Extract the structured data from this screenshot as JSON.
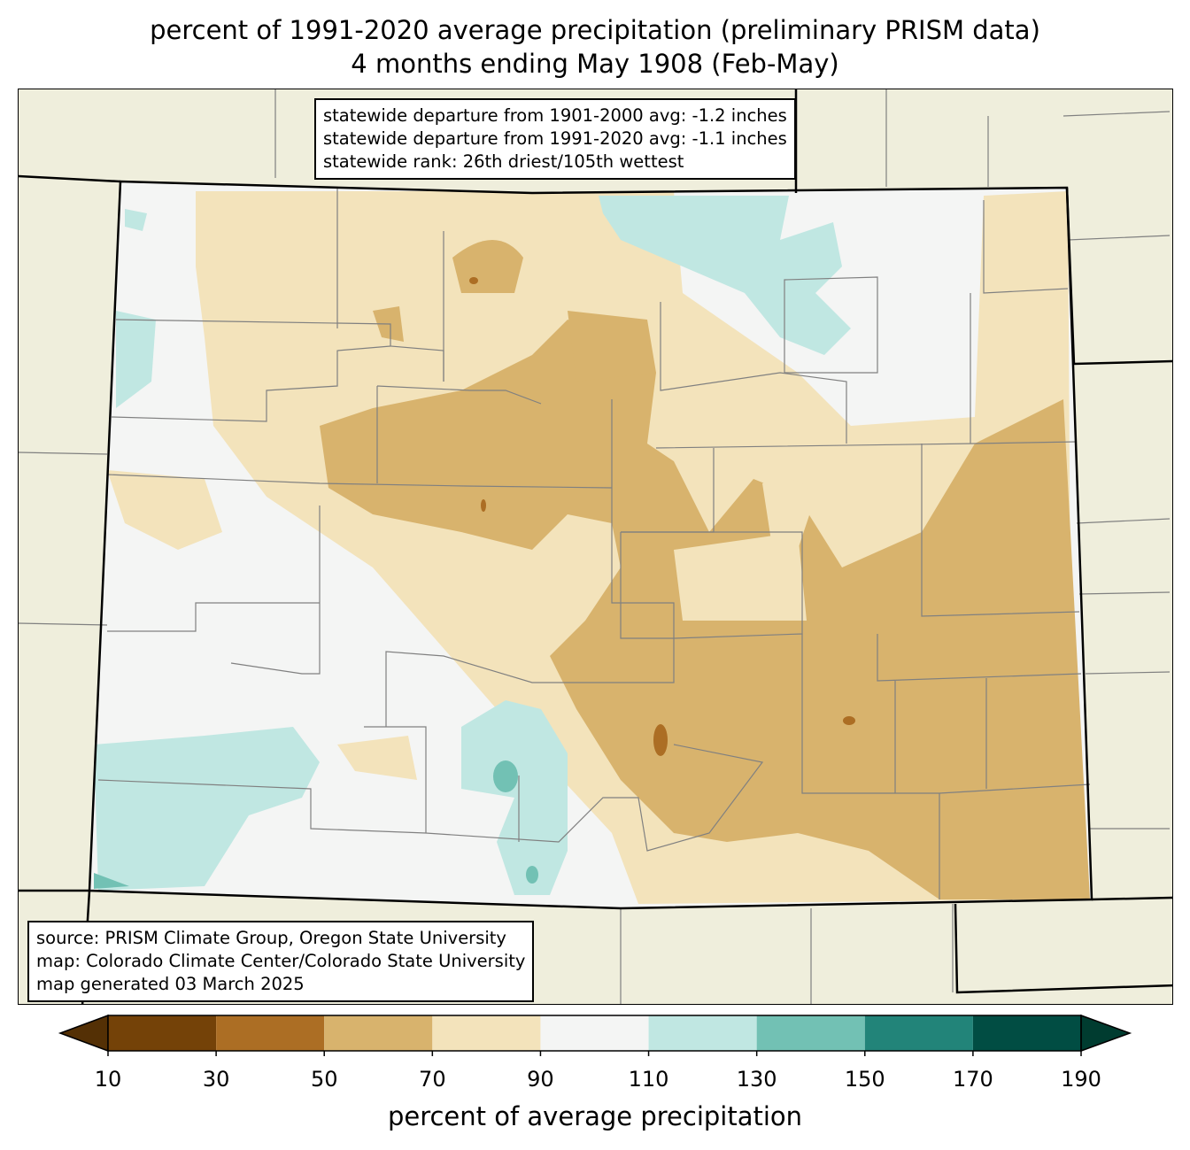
{
  "title": {
    "line1": "percent of 1991-2020 average precipitation (preliminary PRISM data)",
    "line2": "4 months ending May 1908 (Feb-May)"
  },
  "stats": {
    "line1": "statewide departure from 1901-2000 avg: -1.2 inches",
    "line2": "statewide departure from 1991-2020 avg: -1.1 inches",
    "line3": "statewide rank: 26th driest/105th wettest"
  },
  "source": {
    "line1": "source: PRISM Climate Group, Oregon State University",
    "line2": "map: Colorado Climate Center/Colorado State University",
    "line3": "map generated 03 March 2025"
  },
  "colorbar": {
    "label": "percent of average precipitation",
    "ticks": [
      "10",
      "30",
      "50",
      "70",
      "90",
      "110",
      "130",
      "150",
      "170",
      "190"
    ],
    "colors": [
      "#744208",
      "#ac6e24",
      "#d8b36d",
      "#f3e3bb",
      "#f4f5f4",
      "#c0e7e2",
      "#72c1b4",
      "#228479",
      "#014d43"
    ],
    "under_color": "#543005",
    "over_color": "#003c30"
  },
  "map_colors": {
    "background": "#efeedc",
    "border": "#000000",
    "county_lines": "#808080"
  }
}
